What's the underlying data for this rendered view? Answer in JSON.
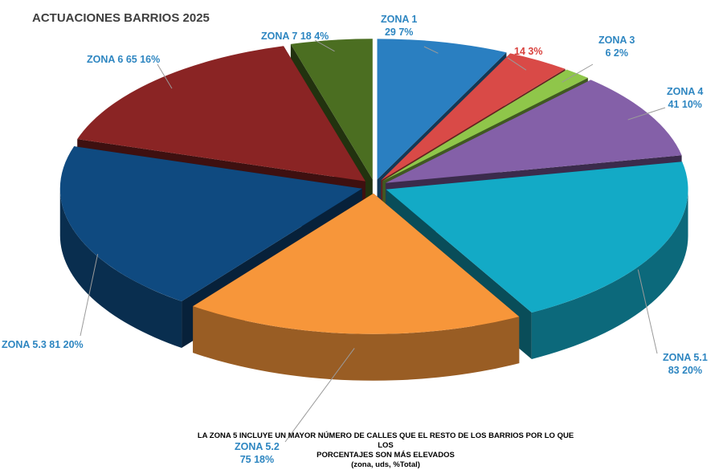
{
  "chart_data": {
    "type": "pie",
    "title": "ACTUACIONES BARRIOS 2025",
    "slices": [
      {
        "label_line1": "ZONA 1",
        "label_line2": "29 7%",
        "value": 29,
        "percent": 7,
        "color": "#2a7fc1",
        "label_color": "#2e86c1"
      },
      {
        "label_line1": "",
        "label_line2": "14 3%",
        "value": 14,
        "percent": 3,
        "color": "#d94a47",
        "label_color": "#d9423e"
      },
      {
        "label_line1": "ZONA 3",
        "label_line2": "6 2%",
        "value": 6,
        "percent": 2,
        "color": "#8fc64a",
        "label_color": "#2e86c1"
      },
      {
        "label_line1": "ZONA 4",
        "label_line2": "41 10%",
        "value": 41,
        "percent": 10,
        "color": "#8460a8",
        "label_color": "#2e86c1"
      },
      {
        "label_line1": "ZONA 5.1",
        "label_line2": "83 20%",
        "value": 83,
        "percent": 20,
        "color": "#13aac6",
        "label_color": "#2e86c1"
      },
      {
        "label_line1": "ZONA 5.2",
        "label_line2": "75 18%",
        "value": 75,
        "percent": 18,
        "color": "#f7963a",
        "label_color": "#2e86c1"
      },
      {
        "label_line1": "ZONA 5.3 81 20%",
        "label_line2": "",
        "value": 81,
        "percent": 20,
        "color": "#0f4a80",
        "label_color": "#2e86c1"
      },
      {
        "label_line1": "ZONA 6 65 16%",
        "label_line2": "",
        "value": 65,
        "percent": 16,
        "color": "#8a2424",
        "label_color": "#2e86c1"
      },
      {
        "label_line1": "ZONA 7 18 4%",
        "label_line2": "",
        "value": 18,
        "percent": 4,
        "color": "#4b6e21",
        "label_color": "#2e86c1"
      }
    ],
    "legend": "none"
  },
  "note": {
    "line1": "LA ZONA 5 INCLUYE UN MAYOR NÚMERO DE CALLES QUE EL RESTO DE LOS BARRIOS  POR LO QUE LOS",
    "line2": "PORCENTAJES SON MÁS ELEVADOS",
    "line3": "(zona, uds, %Total)"
  }
}
